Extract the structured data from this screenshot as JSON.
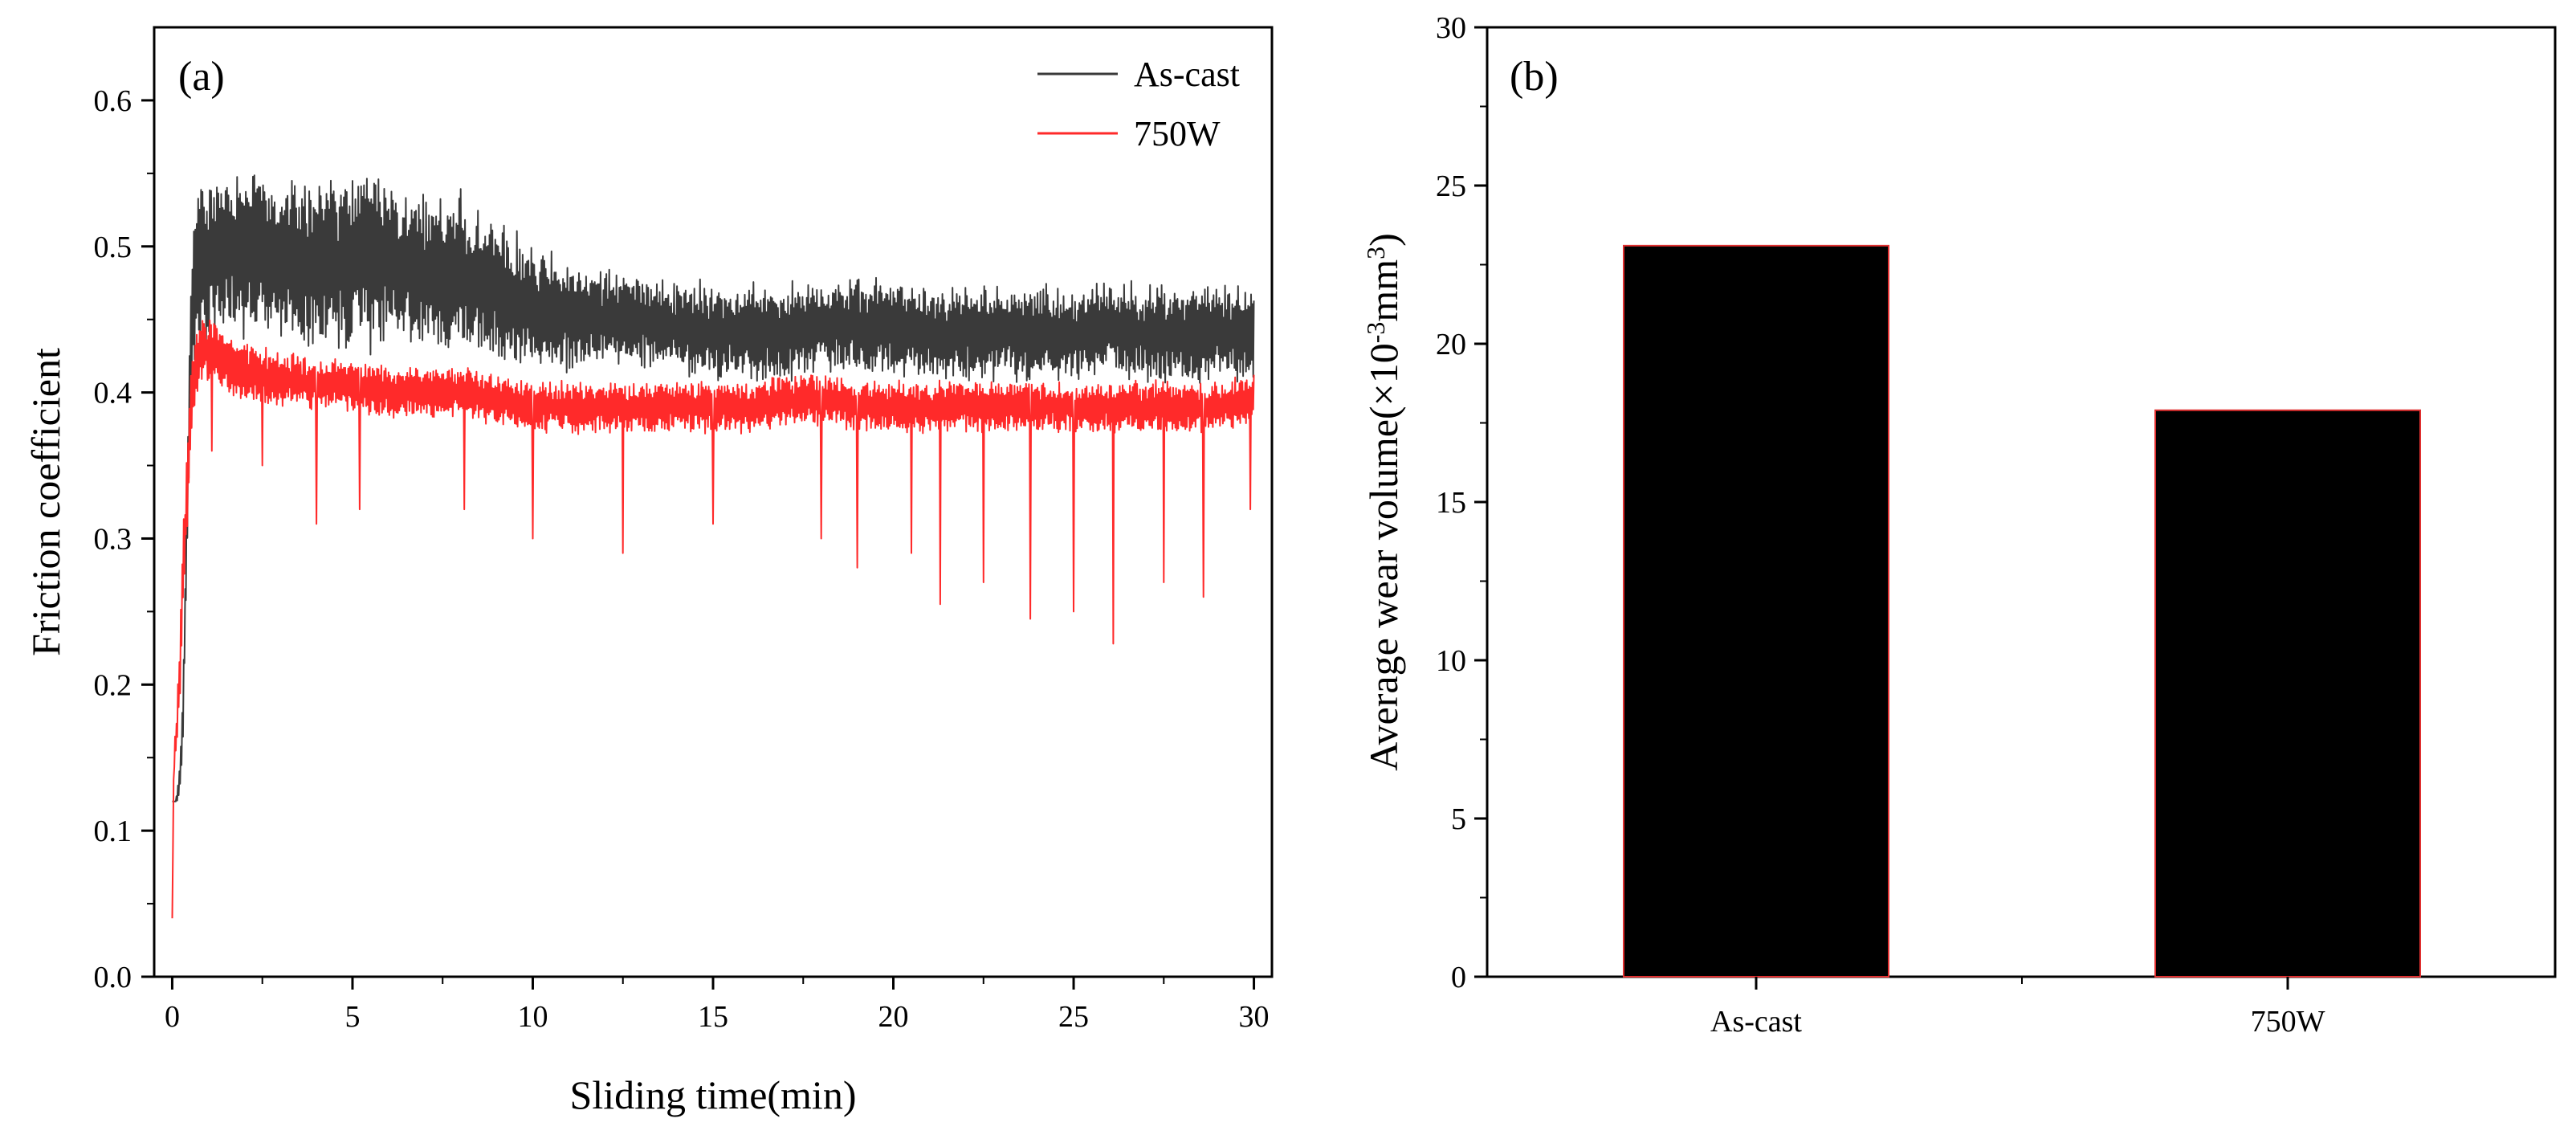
{
  "chart_data": [
    {
      "panel": "(a)",
      "type": "line",
      "xlabel": "Sliding time(min)",
      "ylabel": "Friction coefficient",
      "xlim": [
        -0.5,
        30.5
      ],
      "ylim": [
        0.0,
        0.65
      ],
      "xticks": [
        0,
        5,
        10,
        15,
        20,
        25,
        30
      ],
      "xtick_labels": [
        "0",
        "5",
        "10",
        "15",
        "20",
        "25",
        "30"
      ],
      "yticks": [
        0.0,
        0.1,
        0.2,
        0.3,
        0.4,
        0.5,
        0.6
      ],
      "ytick_labels": [
        "0.0",
        "0.1",
        "0.2",
        "0.3",
        "0.4",
        "0.5",
        "0.6"
      ],
      "legend_position": "top-right",
      "series": [
        {
          "name": "As-cast",
          "color": "#3a3a3a",
          "x": [
            0,
            0.1,
            0.2,
            0.3,
            0.4,
            0.5,
            0.6,
            0.8,
            1,
            1.5,
            2,
            2.5,
            3,
            4,
            5,
            5.5,
            6,
            7,
            8,
            9,
            10,
            11,
            12,
            13,
            14,
            15,
            16,
            17,
            18,
            19,
            20,
            21,
            22,
            23,
            24,
            25,
            26,
            27,
            28,
            29,
            30
          ],
          "mean": [
            0.12,
            0.12,
            0.13,
            0.18,
            0.3,
            0.42,
            0.47,
            0.49,
            0.49,
            0.5,
            0.5,
            0.5,
            0.49,
            0.49,
            0.49,
            0.49,
            0.49,
            0.48,
            0.48,
            0.47,
            0.46,
            0.455,
            0.45,
            0.45,
            0.445,
            0.44,
            0.44,
            0.44,
            0.445,
            0.445,
            0.445,
            0.44,
            0.44,
            0.44,
            0.44,
            0.44,
            0.445,
            0.44,
            0.44,
            0.44,
            0.44
          ],
          "amplitude": [
            0,
            0,
            0.01,
            0.02,
            0.03,
            0.04,
            0.05,
            0.05,
            0.05,
            0.05,
            0.055,
            0.05,
            0.05,
            0.05,
            0.055,
            0.055,
            0.05,
            0.05,
            0.05,
            0.045,
            0.04,
            0.035,
            0.03,
            0.03,
            0.03,
            0.03,
            0.03,
            0.03,
            0.03,
            0.03,
            0.03,
            0.03,
            0.03,
            0.03,
            0.03,
            0.03,
            0.03,
            0.03,
            0.03,
            0.03,
            0.03
          ]
        },
        {
          "name": "750W",
          "color": "#ff2a2a",
          "x": [
            0,
            0.05,
            0.1,
            0.2,
            0.3,
            0.4,
            0.5,
            0.6,
            0.8,
            1,
            1.5,
            2,
            2.5,
            3,
            4,
            5,
            6,
            7,
            8,
            9,
            10,
            11,
            12,
            13,
            14,
            15,
            16,
            17,
            18,
            19,
            20,
            21,
            22,
            23,
            24,
            25,
            26,
            27,
            28,
            29,
            30
          ],
          "mean": [
            0.04,
            0.15,
            0.16,
            0.2,
            0.27,
            0.33,
            0.38,
            0.41,
            0.43,
            0.43,
            0.42,
            0.415,
            0.41,
            0.41,
            0.405,
            0.405,
            0.4,
            0.4,
            0.4,
            0.395,
            0.39,
            0.39,
            0.39,
            0.39,
            0.39,
            0.39,
            0.39,
            0.395,
            0.395,
            0.39,
            0.39,
            0.39,
            0.39,
            0.39,
            0.39,
            0.39,
            0.39,
            0.39,
            0.39,
            0.39,
            0.395
          ],
          "amplitude": [
            0,
            0.01,
            0.01,
            0.02,
            0.03,
            0.03,
            0.03,
            0.025,
            0.02,
            0.02,
            0.02,
            0.018,
            0.018,
            0.018,
            0.016,
            0.016,
            0.016,
            0.016,
            0.016,
            0.016,
            0.016,
            0.016,
            0.016,
            0.016,
            0.016,
            0.016,
            0.016,
            0.016,
            0.016,
            0.016,
            0.016,
            0.016,
            0.016,
            0.016,
            0.016,
            0.016,
            0.016,
            0.016,
            0.016,
            0.016,
            0.016
          ],
          "dips": [
            [
              1.1,
              0.36
            ],
            [
              2.5,
              0.35
            ],
            [
              4,
              0.31
            ],
            [
              5.2,
              0.32
            ],
            [
              8.1,
              0.32
            ],
            [
              10,
              0.3
            ],
            [
              12.5,
              0.29
            ],
            [
              15,
              0.31
            ],
            [
              18,
              0.3
            ],
            [
              19,
              0.28
            ],
            [
              20.5,
              0.29
            ],
            [
              21.3,
              0.255
            ],
            [
              22.5,
              0.27
            ],
            [
              23.8,
              0.245
            ],
            [
              25,
              0.25
            ],
            [
              26.1,
              0.228
            ],
            [
              27.5,
              0.27
            ],
            [
              28.6,
              0.26
            ],
            [
              29.9,
              0.32
            ]
          ]
        }
      ]
    },
    {
      "panel": "(b)",
      "type": "bar",
      "ylabel_main": "Average wear volume(×10",
      "ylabel_exp1": "-3",
      "ylabel_mid": "mm",
      "ylabel_exp2": "3",
      "ylabel_end": ")",
      "categories": [
        "As-cast",
        "750W"
      ],
      "values": [
        23.1,
        17.9
      ],
      "bar_color": "#000000",
      "bar_edge_color": "#e03030",
      "ylim": [
        0,
        30
      ],
      "yticks": [
        0,
        5,
        10,
        15,
        20,
        25,
        30
      ],
      "ytick_labels": [
        "0",
        "5",
        "10",
        "15",
        "20",
        "25",
        "30"
      ]
    }
  ]
}
